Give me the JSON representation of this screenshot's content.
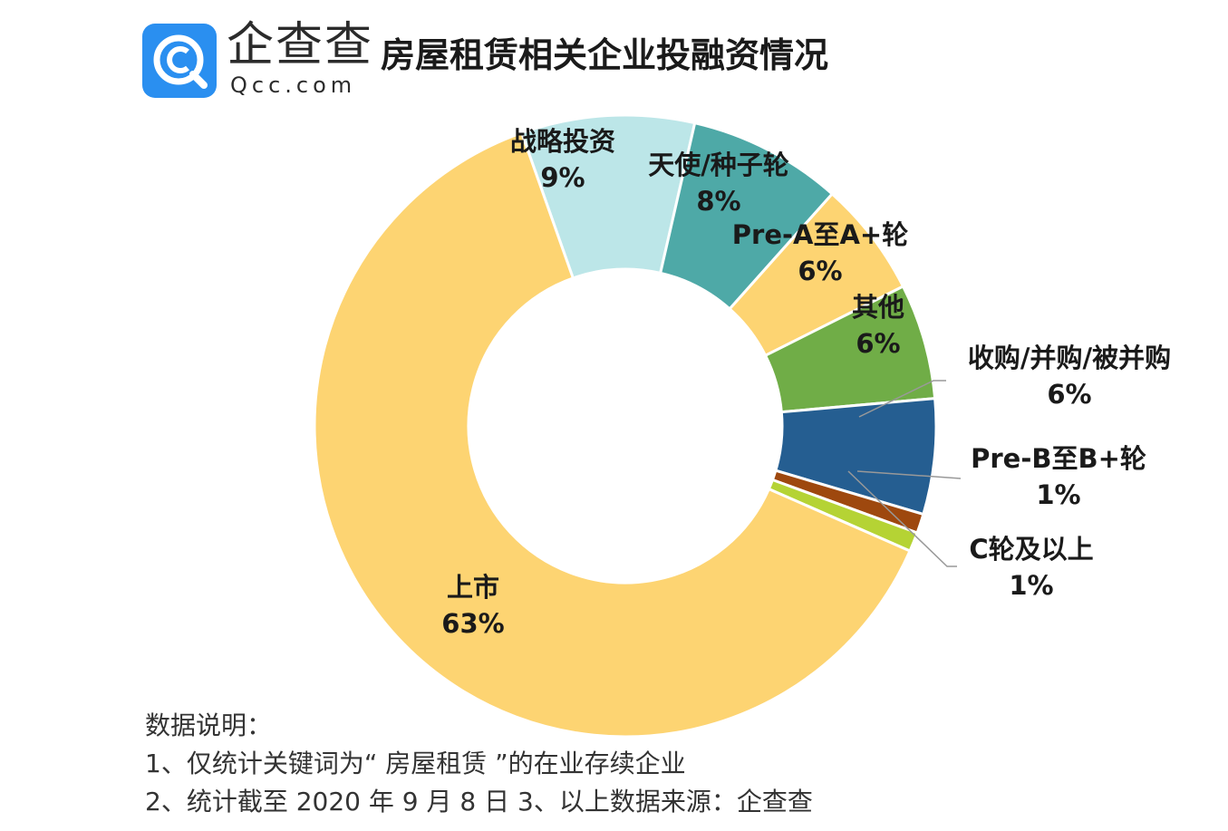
{
  "header": {
    "logo_name": "企查查",
    "logo_domain": "Qcc.com",
    "title": "房屋租赁相关企业投融资情况"
  },
  "colors": {
    "brand_blue": "#2a8ff0",
    "label_line": "#999999",
    "slice_border": "#ffffff"
  },
  "chart_data": {
    "type": "pie",
    "donut": true,
    "slices": [
      {
        "label": "战略投资",
        "value": 9,
        "display": "9%",
        "color": "#bce6e8"
      },
      {
        "label": "天使/种子轮",
        "value": 8,
        "display": "8%",
        "color": "#4ea9a7"
      },
      {
        "label": "Pre-A至A+轮",
        "value": 6,
        "display": "6%",
        "color": "#fdd472"
      },
      {
        "label": "其他",
        "value": 6,
        "display": "6%",
        "color": "#70ad47"
      },
      {
        "label": "收购/并购/被并购",
        "value": 6,
        "display": "6%",
        "color": "#255e91"
      },
      {
        "label": "Pre-B至B+轮",
        "value": 1,
        "display": "1%",
        "color": "#9e480e"
      },
      {
        "label": "C轮及以上",
        "value": 1,
        "display": "1%",
        "color": "#b5d334"
      },
      {
        "label": "上市",
        "value": 63,
        "display": "63%",
        "color": "#fdd472"
      }
    ]
  },
  "notes": {
    "heading": "数据说明：",
    "line1": "1、仅统计关键词为“ 房屋租赁 ”的在业存续企业",
    "line2": "2、统计截至 2020 年 9 月 8 日   3、以上数据来源：企查查"
  }
}
